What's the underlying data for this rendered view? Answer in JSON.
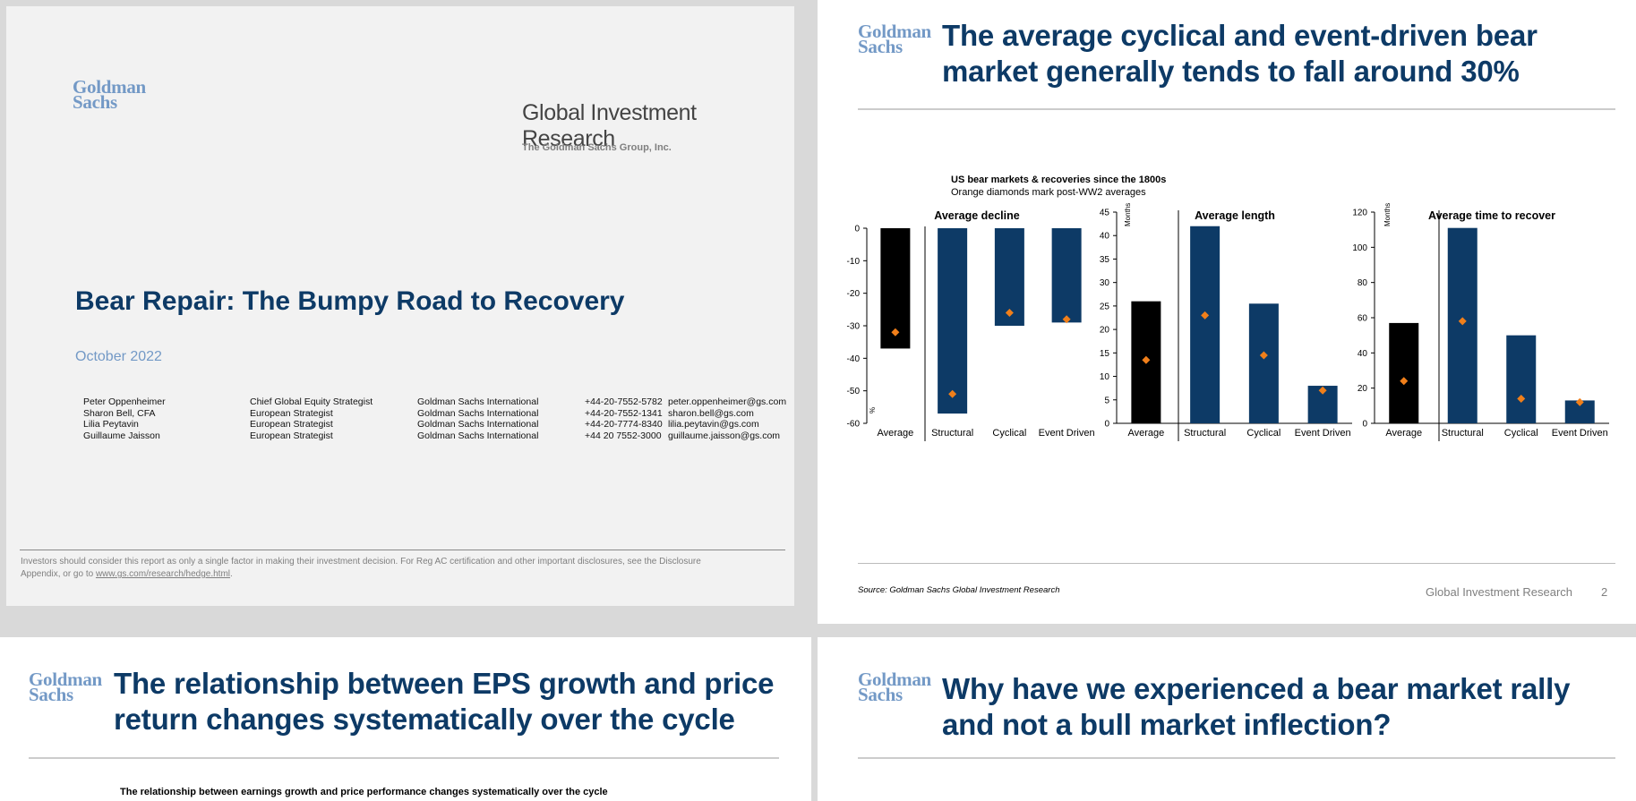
{
  "logo": {
    "line1": "Goldman",
    "line2": "Sachs"
  },
  "cover": {
    "division": "Global Investment Research",
    "group": "The Goldman Sachs Group, Inc.",
    "title": "Bear Repair: The Bumpy Road to Recovery",
    "date": "October 2022",
    "authors": [
      {
        "name": "Peter Oppenheimer",
        "role": "Chief Global Equity Strategist",
        "firm": "Goldman Sachs International",
        "phone": "+44-20-7552-5782",
        "email": "peter.oppenheimer@gs.com"
      },
      {
        "name": "Sharon Bell, CFA",
        "role": "European Strategist",
        "firm": "Goldman Sachs International",
        "phone": "+44-20-7552-1341",
        "email": "sharon.bell@gs.com"
      },
      {
        "name": "Lilia Peytavin",
        "role": "European Strategist",
        "firm": "Goldman Sachs International",
        "phone": "+44-20-7774-8340",
        "email": "lilia.peytavin@gs.com"
      },
      {
        "name": "Guillaume Jaisson",
        "role": "European Strategist",
        "firm": "Goldman Sachs International",
        "phone": "+44 20 7552-3000",
        "email": "guillaume.jaisson@gs.com"
      }
    ],
    "disclaimer_line1": "Investors should consider this report as only a single factor in making their investment decision. For Reg AC certification and other important disclosures, see the Disclosure",
    "disclaimer_line2_prefix": "Appendix, or go to ",
    "disclaimer_link": "www.gs.com/research/hedge.html",
    "disclaimer_line2_suffix": "."
  },
  "slide2": {
    "title_line1": "The average cyclical and event-driven bear",
    "title_line2": "market generally tends to fall around 30%",
    "chart_title": "US bear markets & recoveries since the 1800s",
    "chart_subtitle": "Orange diamonds mark post-WW2 averages",
    "source": "Source: Goldman Sachs Global Investment Research",
    "footer": "Global Investment Research",
    "page_number": "2"
  },
  "slide3": {
    "title_line1": "The relationship between EPS growth and price",
    "title_line2": "return changes systematically over the cycle",
    "chart_title": "The relationship between earnings growth and price performance changes systematically over the cycle"
  },
  "slide4": {
    "title_line1": "Why have we experienced a bear market rally",
    "title_line2": "and not a bull market inflection?"
  },
  "colors": {
    "navy": "#0d3a66",
    "black": "#000000",
    "orange": "#f07f1a",
    "logo": "#7399c6"
  },
  "chart_data": [
    {
      "type": "bar",
      "title": "Average decline",
      "ylabel": "%",
      "ylim": [
        -60,
        0
      ],
      "yticks": [
        0,
        -10,
        -20,
        -30,
        -40,
        -50,
        -60
      ],
      "categories": [
        "Average",
        "Structural",
        "Cyclical",
        "Event Driven"
      ],
      "values": [
        -37,
        -57,
        -30,
        -29
      ],
      "post_ww2_averages": [
        -32,
        -51,
        -26,
        -28
      ],
      "bar_colors": [
        "#000000",
        "#0d3a66",
        "#0d3a66",
        "#0d3a66"
      ]
    },
    {
      "type": "bar",
      "title": "Average length",
      "ylabel": "Months",
      "ylim": [
        0,
        45
      ],
      "yticks": [
        0,
        5,
        10,
        15,
        20,
        25,
        30,
        35,
        40,
        45
      ],
      "categories": [
        "Average",
        "Structural",
        "Cyclical",
        "Event Driven"
      ],
      "values": [
        26,
        42,
        25.5,
        8
      ],
      "post_ww2_averages": [
        13.5,
        23,
        14.5,
        7
      ],
      "bar_colors": [
        "#000000",
        "#0d3a66",
        "#0d3a66",
        "#0d3a66"
      ]
    },
    {
      "type": "bar",
      "title": "Average time to recover",
      "ylabel": "Months",
      "ylim": [
        0,
        120
      ],
      "yticks": [
        0,
        20,
        40,
        60,
        80,
        100,
        120
      ],
      "categories": [
        "Average",
        "Structural",
        "Cyclical",
        "Event Driven"
      ],
      "values": [
        57,
        111,
        50,
        13
      ],
      "post_ww2_averages": [
        24,
        58,
        14,
        12
      ],
      "bar_colors": [
        "#000000",
        "#0d3a66",
        "#0d3a66",
        "#0d3a66"
      ]
    }
  ]
}
